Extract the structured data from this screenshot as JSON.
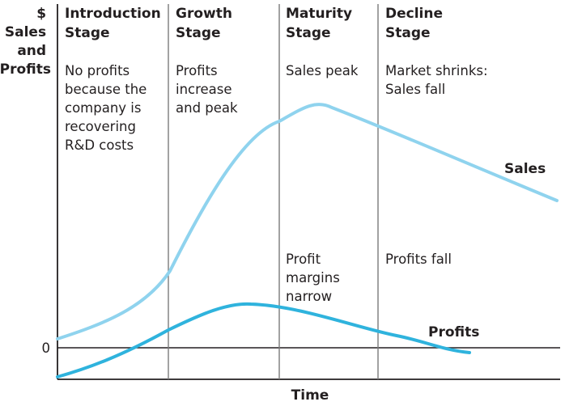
{
  "y_axis_label": [
    "$",
    "Sales",
    "and",
    "Profits"
  ],
  "zero_label": "0",
  "x_axis_label": "Time",
  "stages": [
    {
      "title": [
        "Introduction",
        "Stage"
      ],
      "description": [
        "No profits",
        "because the",
        "company is",
        "recovering",
        "R&D costs"
      ],
      "note": []
    },
    {
      "title": [
        "Growth",
        "Stage"
      ],
      "description": [
        "Profits",
        "increase",
        "and peak"
      ],
      "note": []
    },
    {
      "title": [
        "Maturity",
        "Stage"
      ],
      "description": [
        "Sales peak"
      ],
      "note": [
        "Profit",
        "margins",
        "narrow"
      ]
    },
    {
      "title": [
        "Decline",
        "Stage"
      ],
      "description": [
        "Market shrinks:",
        "Sales fall"
      ],
      "note": [
        "Profits fall"
      ]
    }
  ],
  "curves": {
    "sales": {
      "label": "Sales",
      "color": "#8fd3ee"
    },
    "profits": {
      "label": "Profits",
      "color": "#2fb3dd"
    }
  },
  "colors": {
    "text": "#231f20",
    "axis": "#231f20",
    "divider": "#7a7a7a"
  }
}
